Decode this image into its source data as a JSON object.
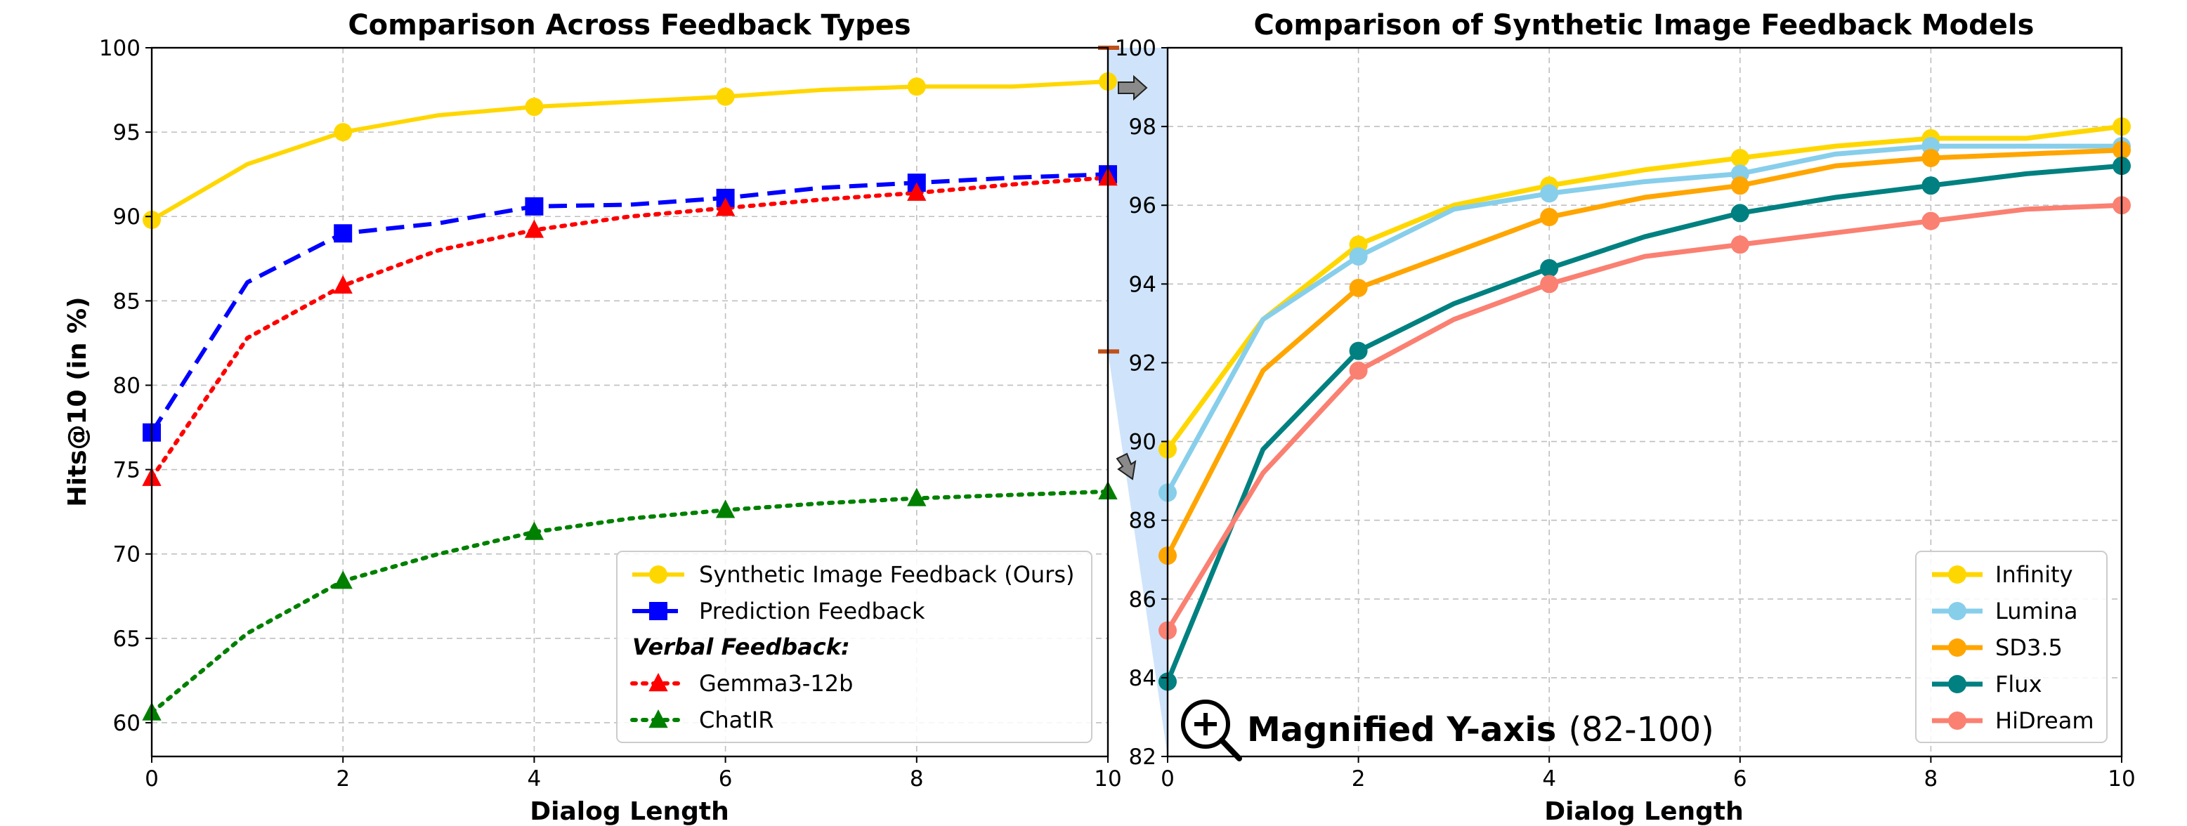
{
  "chart_data": [
    {
      "type": "line",
      "title": "Comparison Across Feedback Types",
      "xlabel": "Dialog Length",
      "ylabel": "Hits@10 (in %)",
      "xlim": [
        0,
        10
      ],
      "ylim": [
        58,
        100
      ],
      "xticks": [
        0,
        2,
        4,
        6,
        8,
        10
      ],
      "yticks": [
        60,
        65,
        70,
        75,
        80,
        85,
        90,
        95,
        100
      ],
      "grid": true,
      "legend_location": "lower-right",
      "legend_subheader": "Verbal Feedback:",
      "x": [
        0,
        1,
        2,
        3,
        4,
        5,
        6,
        7,
        8,
        9,
        10
      ],
      "series": [
        {
          "name": "Synthetic Image Feedback (Ours)",
          "color": "#FFD700",
          "style": "solid",
          "marker": "circle",
          "marker_x": [
            0,
            2,
            4,
            6,
            8,
            10
          ],
          "values": [
            89.8,
            93.1,
            95.0,
            96.0,
            96.5,
            96.8,
            97.1,
            97.5,
            97.7,
            97.7,
            98.0
          ]
        },
        {
          "name": "Prediction Feedback",
          "color": "#0000FF",
          "style": "dashed",
          "marker": "square",
          "marker_x": [
            0,
            2,
            4,
            6,
            8,
            10
          ],
          "values": [
            77.2,
            86.1,
            89.0,
            89.6,
            90.6,
            90.7,
            91.1,
            91.7,
            92.0,
            92.3,
            92.5
          ]
        },
        {
          "name": "Gemma3-12b",
          "color": "#FF0000",
          "style": "dotted",
          "marker": "triangle",
          "marker_x": [
            0,
            2,
            4,
            6,
            8,
            10
          ],
          "values": [
            74.5,
            82.8,
            85.9,
            88.0,
            89.2,
            90.0,
            90.5,
            91.0,
            91.4,
            91.9,
            92.3
          ]
        },
        {
          "name": "ChatIR",
          "color": "#008000",
          "style": "dotted",
          "marker": "triangle",
          "marker_x": [
            0,
            2,
            4,
            6,
            8,
            10
          ],
          "values": [
            60.6,
            65.3,
            68.4,
            70.0,
            71.3,
            72.1,
            72.6,
            73.0,
            73.3,
            73.5,
            73.7
          ]
        }
      ]
    },
    {
      "type": "line",
      "title": "Comparison of Synthetic Image Feedback Models",
      "xlabel": "Dialog Length",
      "ylabel": "",
      "xlim": [
        0,
        10
      ],
      "ylim": [
        82,
        100
      ],
      "xticks": [
        0,
        2,
        4,
        6,
        8,
        10
      ],
      "yticks": [
        82,
        84,
        86,
        88,
        90,
        92,
        94,
        96,
        98,
        100
      ],
      "grid": true,
      "legend_location": "lower-right",
      "x": [
        0,
        1,
        2,
        3,
        4,
        5,
        6,
        7,
        8,
        9,
        10
      ],
      "series": [
        {
          "name": "Infinity",
          "color": "#FFD700",
          "marker_x": [
            0,
            2,
            4,
            6,
            8,
            10
          ],
          "values": [
            89.8,
            93.1,
            95.0,
            96.0,
            96.5,
            96.9,
            97.2,
            97.5,
            97.7,
            97.7,
            98.0
          ]
        },
        {
          "name": "Lumina",
          "color": "#87CEEB",
          "marker_x": [
            0,
            2,
            4,
            6,
            8,
            10
          ],
          "values": [
            88.7,
            93.1,
            94.7,
            95.9,
            96.3,
            96.6,
            96.8,
            97.3,
            97.5,
            97.5,
            97.5
          ]
        },
        {
          "name": "SD3.5",
          "color": "#FFA500",
          "marker_x": [
            0,
            2,
            4,
            6,
            8,
            10
          ],
          "values": [
            87.1,
            91.8,
            93.9,
            94.8,
            95.7,
            96.2,
            96.5,
            97.0,
            97.2,
            97.3,
            97.4
          ]
        },
        {
          "name": "Flux",
          "color": "#008080",
          "marker_x": [
            0,
            2,
            4,
            6,
            8,
            10
          ],
          "values": [
            83.9,
            89.8,
            92.3,
            93.5,
            94.4,
            95.2,
            95.8,
            96.2,
            96.5,
            96.8,
            97.0
          ]
        },
        {
          "name": "HiDream",
          "color": "#FA8072",
          "marker_x": [
            0,
            2,
            4,
            6,
            8,
            10
          ],
          "values": [
            85.2,
            89.2,
            91.8,
            93.1,
            94.0,
            94.7,
            95.0,
            95.3,
            95.6,
            95.9,
            96.0
          ]
        }
      ]
    }
  ],
  "magnifier": {
    "label_bold": "Magnified Y-axis",
    "label_range": "(82-100)",
    "icon": "magnifier-plus-icon",
    "range": [
      82,
      100
    ],
    "source_panel_range": [
      82,
      100
    ]
  }
}
